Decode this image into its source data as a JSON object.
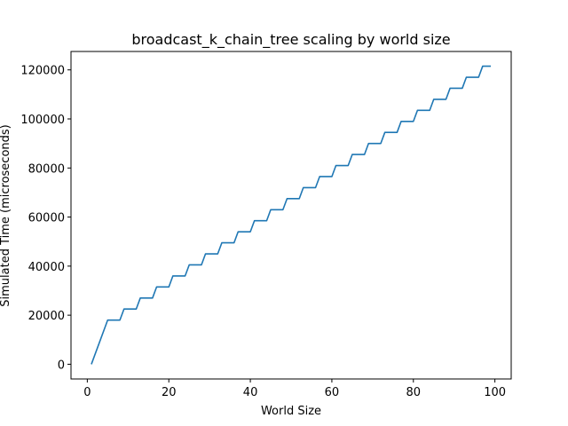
{
  "chart_data": {
    "type": "line",
    "title": "broadcast_k_chain_tree scaling by world size",
    "xlabel": "World Size",
    "ylabel": "Simulated Time (microseconds)",
    "xlim": [
      -4,
      104
    ],
    "ylim": [
      -6000,
      127500
    ],
    "xticks": [
      0,
      20,
      40,
      60,
      80,
      100
    ],
    "yticks": [
      0,
      20000,
      40000,
      60000,
      80000,
      100000,
      120000
    ],
    "grid": false,
    "legend": "none",
    "colors": {
      "series": "#1f77b4"
    },
    "series": [
      {
        "x": [
          1,
          5,
          8,
          9,
          12,
          13,
          16,
          17,
          20,
          21,
          24,
          25,
          28,
          29,
          32,
          33,
          36,
          37,
          40,
          41,
          44,
          45,
          48,
          49,
          52,
          53,
          56,
          57,
          60,
          61,
          64,
          65,
          68,
          69,
          72,
          73,
          76,
          77,
          80,
          81,
          84,
          85,
          88,
          89,
          92,
          93,
          96,
          97,
          99
        ],
        "values": [
          0,
          18000,
          18000,
          22500,
          22500,
          27000,
          27000,
          31500,
          31500,
          36000,
          36000,
          40500,
          40500,
          45000,
          45000,
          49500,
          49500,
          54000,
          54000,
          58500,
          58500,
          63000,
          63000,
          67500,
          67500,
          72000,
          72000,
          76500,
          76500,
          81000,
          81000,
          85500,
          85500,
          90000,
          90000,
          94500,
          94500,
          99000,
          99000,
          103500,
          103500,
          108000,
          108000,
          112500,
          112500,
          117000,
          117000,
          121500,
          121500
        ]
      }
    ]
  }
}
